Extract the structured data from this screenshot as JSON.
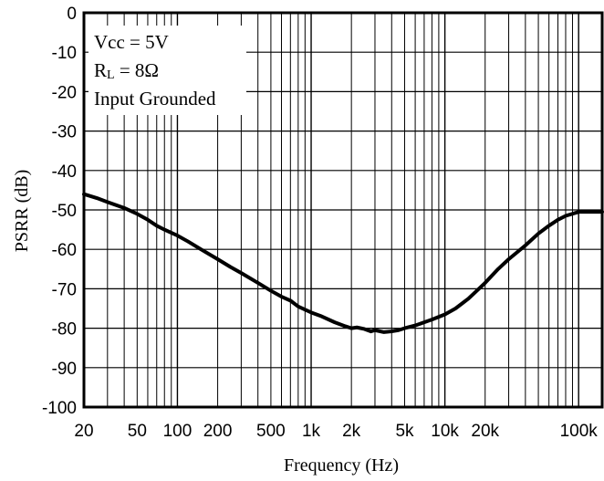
{
  "chart_data": {
    "type": "line",
    "title": "",
    "xlabel": "Frequency (Hz)",
    "ylabel": "PSRR (dB)",
    "xscale": "log",
    "xlim": [
      20,
      150000
    ],
    "ylim": [
      -100,
      0
    ],
    "grid": true,
    "x_ticks": [
      {
        "value": 20,
        "label": "20"
      },
      {
        "value": 50,
        "label": "50"
      },
      {
        "value": 100,
        "label": "100"
      },
      {
        "value": 200,
        "label": "200"
      },
      {
        "value": 500,
        "label": "500"
      },
      {
        "value": 1000,
        "label": "1k"
      },
      {
        "value": 2000,
        "label": "2k"
      },
      {
        "value": 5000,
        "label": "5k"
      },
      {
        "value": 10000,
        "label": "10k"
      },
      {
        "value": 20000,
        "label": "20k"
      },
      {
        "value": 100000,
        "label": "100k"
      }
    ],
    "y_ticks": [
      {
        "value": 0,
        "label": "0"
      },
      {
        "value": -10,
        "label": "-10"
      },
      {
        "value": -20,
        "label": "-20"
      },
      {
        "value": -30,
        "label": "-30"
      },
      {
        "value": -40,
        "label": "-40"
      },
      {
        "value": -50,
        "label": "-50"
      },
      {
        "value": -60,
        "label": "-60"
      },
      {
        "value": -70,
        "label": "-70"
      },
      {
        "value": -80,
        "label": "-80"
      },
      {
        "value": -90,
        "label": "-90"
      },
      {
        "value": -100,
        "label": "-100"
      }
    ],
    "annotation": {
      "vcc": "Vcc = 5V",
      "rl_main": "R",
      "rl_sub": "L",
      "rl_rest": " = 8Ω",
      "input": "Input Grounded"
    },
    "series": [
      {
        "color": "#000000",
        "x": [
          20,
          25,
          30,
          40,
          50,
          60,
          70,
          80,
          100,
          120,
          150,
          200,
          250,
          300,
          400,
          500,
          600,
          700,
          800,
          1000,
          1200,
          1500,
          1800,
          2000,
          2200,
          2500,
          2800,
          3000,
          3500,
          4000,
          4500,
          5000,
          6000,
          7000,
          8000,
          10000,
          12000,
          15000,
          20000,
          25000,
          30000,
          40000,
          50000,
          60000,
          70000,
          80000,
          100000,
          120000,
          150000
        ],
        "y": [
          -46,
          -47,
          -48,
          -49.5,
          -51,
          -52.5,
          -54,
          -55,
          -56.5,
          -58,
          -60,
          -62.5,
          -64.5,
          -66,
          -68.5,
          -70.5,
          -72,
          -73,
          -74.5,
          -76,
          -77,
          -78.5,
          -79.5,
          -80,
          -79.8,
          -80.2,
          -80.8,
          -80.5,
          -81,
          -80.8,
          -80.5,
          -80,
          -79.3,
          -78.5,
          -77.8,
          -76.5,
          -75,
          -72.5,
          -68.5,
          -65,
          -62.5,
          -59,
          -56,
          -54,
          -52.5,
          -51.5,
          -50.5,
          -50.5,
          -50.5
        ]
      }
    ]
  }
}
